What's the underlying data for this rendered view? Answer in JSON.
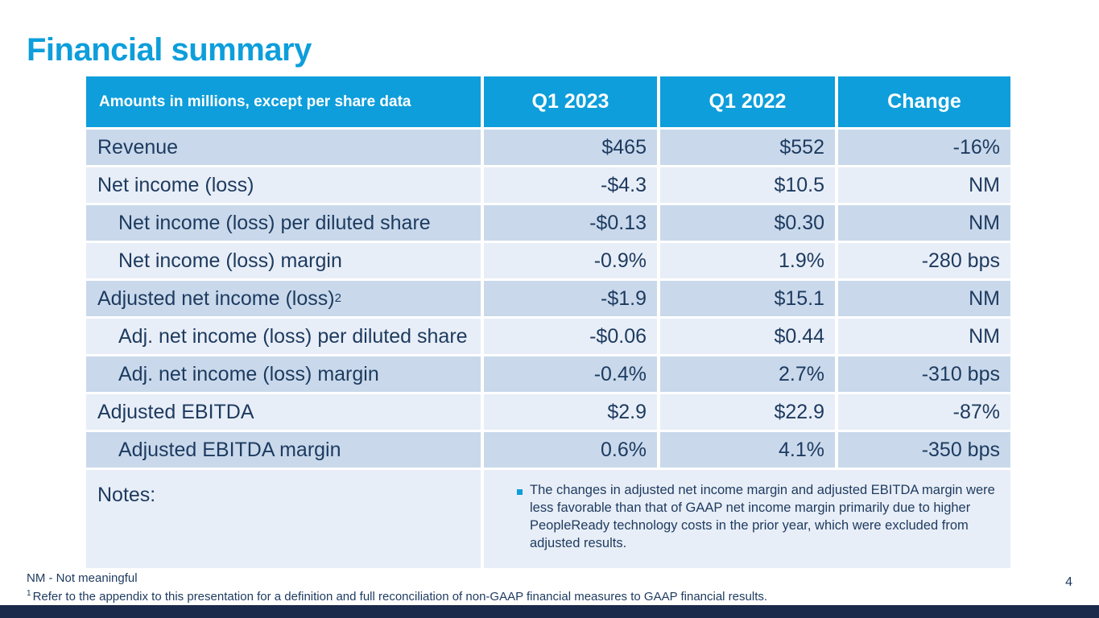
{
  "slide": {
    "title": "Financial summary",
    "page_number": "4"
  },
  "colors": {
    "accent_blue": "#0d9edb",
    "navy_text": "#1d3a5f",
    "row_dark": "#c9d9eb",
    "row_light": "#e8eef7",
    "footer_bar": "#1b294a"
  },
  "icons": {
    "notes_bullet": "square-bullet"
  },
  "table": {
    "header": {
      "label": "Amounts in millions, except per share data",
      "col1": "Q1 2023",
      "col2": "Q1 2022",
      "col3": "Change"
    },
    "rows": [
      {
        "label": "Revenue",
        "q1_2023": "$465",
        "q1_2022": "$552",
        "change": "-16%"
      },
      {
        "label": "Net income (loss)",
        "q1_2023": "-$4.3",
        "q1_2022": "$10.5",
        "change": "NM"
      },
      {
        "label": "Net income (loss) per diluted share",
        "q1_2023": "-$0.13",
        "q1_2022": "$0.30",
        "change": "NM"
      },
      {
        "label": "Net income (loss) margin",
        "q1_2023": "-0.9%",
        "q1_2022": "1.9%",
        "change": "-280 bps"
      },
      {
        "label": "Adjusted net income (loss)",
        "label_sup": "2",
        "q1_2023": "-$1.9",
        "q1_2022": "$15.1",
        "change": "NM"
      },
      {
        "label": "Adj. net income (loss) per diluted share",
        "q1_2023": "-$0.06",
        "q1_2022": "$0.44",
        "change": "NM"
      },
      {
        "label": "Adj. net income (loss) margin",
        "q1_2023": "-0.4%",
        "q1_2022": "2.7%",
        "change": "-310 bps"
      },
      {
        "label": "Adjusted EBITDA",
        "q1_2023": "$2.9",
        "q1_2022": "$22.9",
        "change": "-87%"
      },
      {
        "label": "Adjusted EBITDA margin",
        "q1_2023": "0.6%",
        "q1_2022": "4.1%",
        "change": "-350 bps"
      }
    ],
    "notes": {
      "label": "Notes:",
      "bullet_text": "The changes in adjusted net income margin and adjusted EBITDA margin were less favorable than that of GAAP net income margin primarily due to higher PeopleReady technology costs in the prior year, which were excluded from adjusted results."
    }
  },
  "footer": {
    "nm_definition": "NM - Not meaningful",
    "note_sup": "1",
    "note_text": "Refer to the appendix to this presentation for a definition and full reconciliation of non-GAAP financial measures to GAAP financial results."
  }
}
